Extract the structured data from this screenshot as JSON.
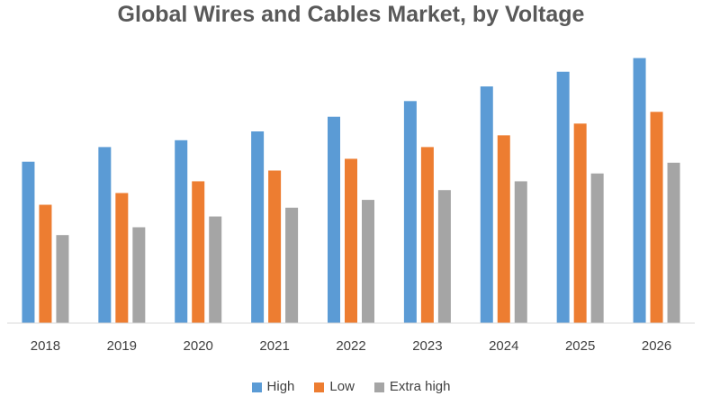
{
  "chart_data": {
    "type": "bar",
    "title": "Global Wires and Cables Market, by Voltage",
    "categories": [
      "2018",
      "2019",
      "2020",
      "2021",
      "2022",
      "2023",
      "2024",
      "2025",
      "2026"
    ],
    "series": [
      {
        "name": "High",
        "color": "#5b9bd5",
        "values": [
          165,
          180,
          187,
          196,
          211,
          227,
          242,
          257,
          271
        ]
      },
      {
        "name": "Low",
        "color": "#ed7d31",
        "values": [
          121,
          133,
          145,
          156,
          168,
          180,
          192,
          204,
          216
        ]
      },
      {
        "name": "Extra high",
        "color": "#a5a5a5",
        "values": [
          90,
          98,
          109,
          118,
          126,
          136,
          145,
          153,
          164
        ]
      }
    ],
    "ylim": [
      0,
      300
    ],
    "grid": false,
    "legend_position": "bottom",
    "xlabel": "",
    "ylabel": ""
  }
}
